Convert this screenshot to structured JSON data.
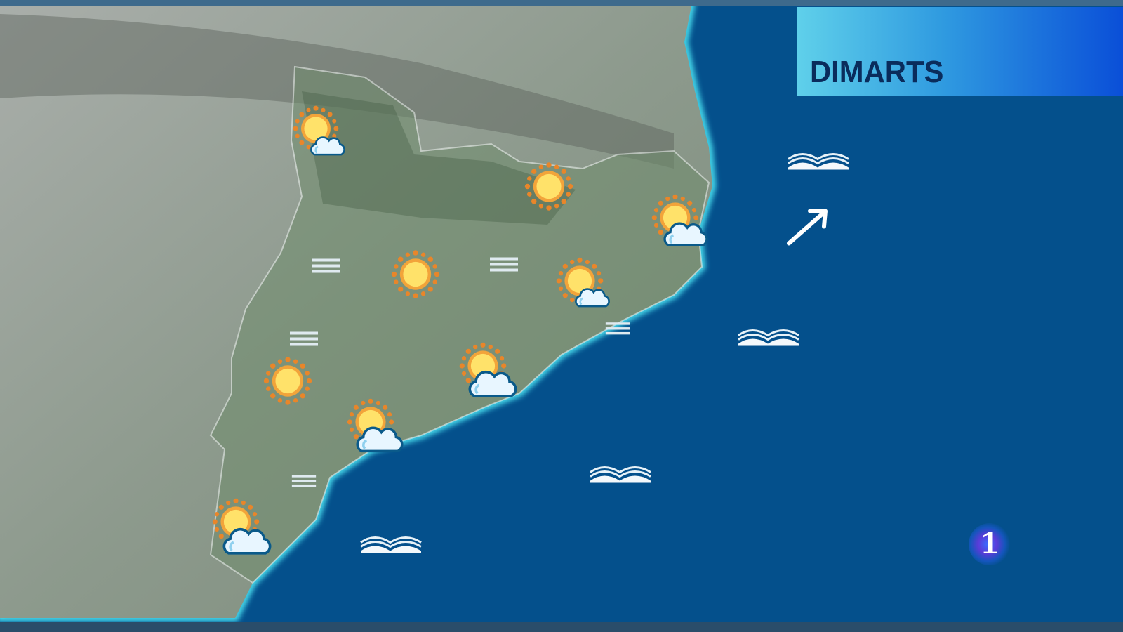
{
  "header": {
    "day_label": "DIMARTS"
  },
  "logo": {
    "text": "1"
  },
  "colors": {
    "sea": "#04508c",
    "land": "#8a9a8a",
    "title_gradient_start": "#5fd0ea",
    "title_gradient_end": "#0a4fd8",
    "title_text": "#0a2c5c"
  },
  "forecast_icons": [
    {
      "type": "sun-cloud-icon"
    },
    {
      "type": "sun-cloud-icon"
    },
    {
      "type": "sun-cloud-icon"
    },
    {
      "type": "sun-cloud-icon"
    },
    {
      "type": "sun-cloud-icon"
    },
    {
      "type": "sun-cloud-icon"
    },
    {
      "type": "sun-icon"
    },
    {
      "type": "sun-icon"
    },
    {
      "type": "sun-icon"
    },
    {
      "type": "fog-icon"
    },
    {
      "type": "fog-icon"
    },
    {
      "type": "fog-icon"
    },
    {
      "type": "fog-icon"
    },
    {
      "type": "fog-icon"
    },
    {
      "type": "waves-icon"
    },
    {
      "type": "waves-icon"
    },
    {
      "type": "waves-icon"
    },
    {
      "type": "waves-icon"
    },
    {
      "type": "wind-arrow-icon",
      "direction": "northeast"
    }
  ]
}
